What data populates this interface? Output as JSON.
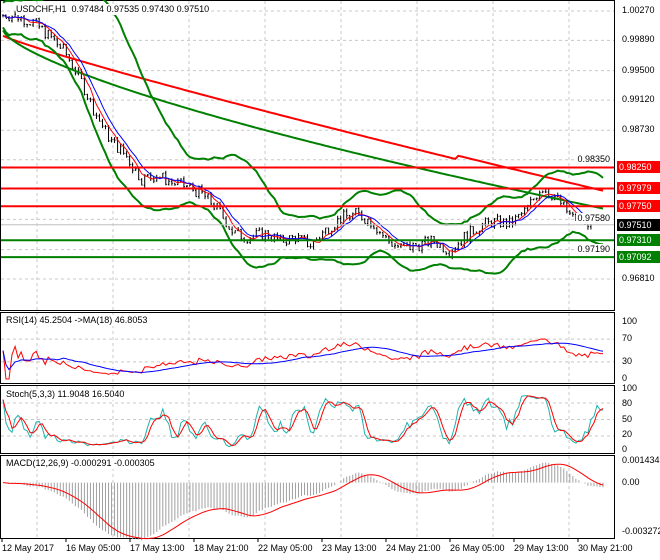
{
  "header": {
    "symbol": "USDCHF,H1",
    "ohlc": "0.97484 0.97535 0.97430 0.97510"
  },
  "price_axis": [
    "1.00270",
    "0.99890",
    "0.99500",
    "0.99120",
    "0.98730",
    "0.98350",
    "0.97580",
    "0.97190",
    "0.96810"
  ],
  "levels": [
    {
      "price": 0.9825,
      "label": "0.98250",
      "color": "#ff0000"
    },
    {
      "price": 0.97979,
      "label": "0.97979",
      "color": "#ff0000"
    },
    {
      "price": 0.9775,
      "label": "0.97750",
      "color": "#ff0000"
    },
    {
      "price": 0.9731,
      "label": "0.97310",
      "color": "#008000"
    },
    {
      "price": 0.97092,
      "label": "0.97092",
      "color": "#008000"
    }
  ],
  "current": {
    "price": 0.9751,
    "label": "0.97510",
    "color": "#000000"
  },
  "rsi": {
    "label": "RSI(14) 45.2504 ->MA(18) 46.8053",
    "axis": [
      "100",
      "70",
      "30",
      "0"
    ]
  },
  "stoch": {
    "label": "Stoch(5,3,3) 11.9048 16.5040",
    "axis": [
      "100",
      "80",
      "50",
      "20",
      "0"
    ]
  },
  "macd": {
    "label": "MACD(12,26,9) -0.000291 -0.000305",
    "axis": [
      "0.001434",
      "0.00",
      "-0.003272"
    ]
  },
  "time_axis": [
    "12 May 2017",
    "16 May 05:00",
    "17 May 13:00",
    "18 May 21:00",
    "22 May 05:00",
    "23 May 13:00",
    "24 May 21:00",
    "26 May 05:00",
    "29 May 13:00",
    "30 May 21:00"
  ],
  "chart_data": {
    "type": "line",
    "keypoints": [
      1.0022,
      1.002,
      1.0012,
      0.9995,
      0.9975,
      0.994,
      0.9895,
      0.986,
      0.984,
      0.981,
      0.9815,
      0.9805,
      0.98,
      0.979,
      0.977,
      0.974,
      0.9735,
      0.974,
      0.973,
      0.9735,
      0.9725,
      0.9745,
      0.976,
      0.9765,
      0.9755,
      0.973,
      0.972,
      0.9725,
      0.973,
      0.9718,
      0.9735,
      0.975,
      0.9755,
      0.9752,
      0.977,
      0.98,
      0.9785,
      0.976,
      0.9755,
      0.9751
    ]
  }
}
